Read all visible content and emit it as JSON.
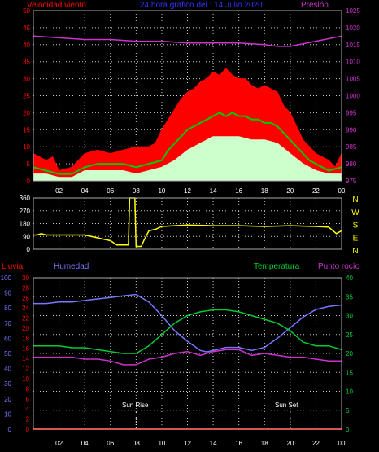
{
  "header": {
    "wind_label": "Velocidad viento",
    "title": "24 hora grafico del : 14 Julio 2020",
    "pressure_label": "Presión"
  },
  "panel_bottom_labels": {
    "rain": "Lluvia",
    "humidity": "Humedad",
    "temperature": "Temperatura",
    "dewpoint": "Punto rocío",
    "sunrise": "Sun Rise",
    "sunset": "Sun Set"
  },
  "colors": {
    "wind_gust": "#ff0000",
    "wind_avg": "#00cc00",
    "wind_min": "#ccffcc",
    "pressure": "#cc33cc",
    "direction": "#ffff00",
    "humidity": "#7777ff",
    "temperature": "#00cc33",
    "dewpoint": "#cc33cc",
    "rain": "#ff0000",
    "axis_text_red": "#ff0000",
    "axis_text_magenta": "#cc33cc",
    "axis_text_blue": "#7777ff",
    "axis_text_green": "#00cc33",
    "axis_text_yellow": "#ffff00"
  },
  "chart_data": [
    {
      "type": "line",
      "name_ref": "wind",
      "x_ticks": [
        "02",
        "04",
        "06",
        "08",
        "10",
        "12",
        "14",
        "16",
        "18",
        "20",
        "22",
        "00"
      ],
      "y_left_ticks": [
        0,
        5,
        10,
        15,
        20,
        25,
        30,
        35,
        40,
        45,
        50
      ],
      "y_right_ticks": [
        975,
        980,
        985,
        990,
        995,
        1000,
        1005,
        1010,
        1015,
        1020,
        1025
      ],
      "ylim_left": [
        0,
        50
      ],
      "ylim_right": [
        975,
        1025
      ],
      "grid": true,
      "series": [
        {
          "key": "gust",
          "x": [
            0,
            0.5,
            1,
            1.5,
            2,
            3,
            4,
            5,
            6,
            7,
            8,
            9,
            9.5,
            10,
            10.5,
            11,
            11.5,
            12,
            12.5,
            13,
            13.5,
            14,
            14.5,
            15,
            15.5,
            16,
            16.5,
            17,
            17.5,
            18,
            18.5,
            19,
            19.5,
            20,
            20.5,
            21,
            21.5,
            22,
            22.5,
            23,
            23.5,
            24
          ],
          "values": [
            8,
            7,
            6,
            7,
            3,
            4,
            8,
            9,
            8,
            9,
            10,
            10,
            11,
            15,
            18,
            21,
            24,
            26,
            27,
            29,
            30,
            32,
            31,
            33,
            31,
            30,
            30,
            28,
            27,
            28,
            27,
            26,
            22,
            20,
            16,
            12,
            10,
            8,
            7,
            6,
            4,
            8
          ]
        },
        {
          "key": "avg",
          "x": [
            0,
            1,
            2,
            3,
            4,
            5,
            6,
            7,
            8,
            9,
            10,
            10.5,
            11,
            11.5,
            12,
            12.5,
            13,
            13.5,
            14,
            14.5,
            15,
            15.5,
            16,
            16.5,
            17,
            17.5,
            18,
            18.5,
            19,
            19.5,
            20,
            20.5,
            21,
            21.5,
            22,
            23,
            24
          ],
          "values": [
            4,
            3,
            2,
            2,
            4,
            5,
            5,
            5,
            4,
            5,
            6,
            9,
            11,
            13,
            15,
            16,
            17,
            18,
            19,
            20,
            19,
            20,
            19,
            19,
            18,
            18,
            17,
            17,
            16,
            14,
            12,
            10,
            8,
            6,
            5,
            3,
            4
          ]
        },
        {
          "key": "min",
          "x": [
            0,
            1,
            2,
            3,
            4,
            5,
            6,
            7,
            8,
            9,
            10,
            11,
            12,
            13,
            14,
            15,
            16,
            17,
            18,
            19,
            20,
            21,
            22,
            23,
            24
          ],
          "values": [
            2,
            2,
            1,
            1,
            3,
            3,
            3,
            3,
            2,
            3,
            4,
            6,
            9,
            11,
            13,
            13,
            13,
            12,
            12,
            11,
            8,
            5,
            3,
            2,
            2
          ]
        },
        {
          "key": "pressure",
          "x": [
            0,
            2,
            4,
            6,
            8,
            10,
            12,
            14,
            16,
            18,
            19,
            20,
            22,
            24
          ],
          "values": [
            1017.5,
            1017,
            1016.5,
            1016.5,
            1016,
            1016,
            1015.5,
            1015.5,
            1015.5,
            1015,
            1014.5,
            1014.5,
            1016,
            1017.5
          ]
        }
      ]
    },
    {
      "type": "line",
      "name_ref": "direction",
      "y_left_ticks": [
        0,
        90,
        180,
        270,
        360
      ],
      "y_right_ticks": [
        "N",
        "W",
        "S",
        "E",
        "N"
      ],
      "ylim": [
        0,
        360
      ],
      "grid": true,
      "series": [
        {
          "key": "dir",
          "x": [
            0,
            0.3,
            0.6,
            1,
            2,
            3,
            4,
            5,
            6,
            6.5,
            7,
            7.4,
            7.5,
            7.9,
            8,
            8.4,
            8.6,
            9,
            9.5,
            10,
            11,
            12,
            14,
            16,
            18,
            20,
            22,
            23,
            23.6,
            24
          ],
          "values": [
            100,
            100,
            110,
            100,
            100,
            100,
            100,
            80,
            60,
            30,
            30,
            30,
            360,
            360,
            20,
            20,
            60,
            130,
            140,
            160,
            165,
            170,
            165,
            165,
            160,
            165,
            160,
            155,
            110,
            130
          ]
        }
      ]
    },
    {
      "type": "line",
      "name_ref": "climate",
      "y_hum_ticks": [
        0,
        10,
        20,
        30,
        40,
        50,
        60,
        70,
        80,
        90,
        100
      ],
      "y_rain_ticks": [
        0,
        2,
        4,
        6,
        8,
        10,
        12,
        14,
        16,
        18,
        20,
        22,
        24,
        26,
        28,
        30
      ],
      "y_temp_ticks": [
        0,
        5,
        10,
        15,
        20,
        25,
        30,
        35,
        40
      ],
      "grid": true,
      "sunrise_hour": 8,
      "sunset_hour": 20,
      "series": [
        {
          "key": "humidity",
          "unit": "percent",
          "x": [
            0,
            1,
            2,
            3,
            4,
            5,
            6,
            7,
            8,
            9,
            10,
            11,
            12,
            13,
            13.5,
            14,
            15,
            16,
            17,
            18,
            19,
            20,
            21,
            22,
            23,
            24
          ],
          "values": [
            83,
            83,
            84,
            84,
            85,
            86,
            87,
            88,
            89,
            84,
            75,
            65,
            58,
            52,
            51,
            52,
            54,
            54,
            52,
            54,
            60,
            67,
            74,
            79,
            81,
            82
          ]
        },
        {
          "key": "temperature",
          "unit": "celsius",
          "x": [
            0,
            1,
            2,
            3,
            4,
            5,
            6,
            7,
            8,
            9,
            10,
            11,
            12,
            13,
            14,
            15,
            16,
            17,
            18,
            19,
            20,
            21,
            22,
            23,
            24
          ],
          "values": [
            22,
            22,
            22,
            21.5,
            21.5,
            21,
            20.5,
            20,
            20,
            22,
            25,
            28,
            30,
            31,
            31.5,
            31.5,
            31,
            30,
            29,
            28,
            26,
            23,
            22,
            22,
            21
          ]
        },
        {
          "key": "dewpoint",
          "unit": "celsius",
          "x": [
            0,
            1,
            2,
            3,
            4,
            5,
            6,
            7,
            8,
            9,
            10,
            11,
            12,
            13,
            14,
            15,
            16,
            17,
            18,
            19,
            20,
            21,
            22,
            23,
            24
          ],
          "values": [
            19,
            19,
            19,
            19,
            18.5,
            18.5,
            18,
            17,
            17,
            18.5,
            19,
            20,
            20.5,
            19.5,
            20.5,
            21,
            21,
            19.5,
            20,
            19.5,
            19,
            19,
            18.5,
            18,
            18
          ]
        },
        {
          "key": "rain",
          "unit": "mm",
          "x": [
            0,
            24
          ],
          "values": [
            0,
            0
          ]
        }
      ]
    }
  ]
}
